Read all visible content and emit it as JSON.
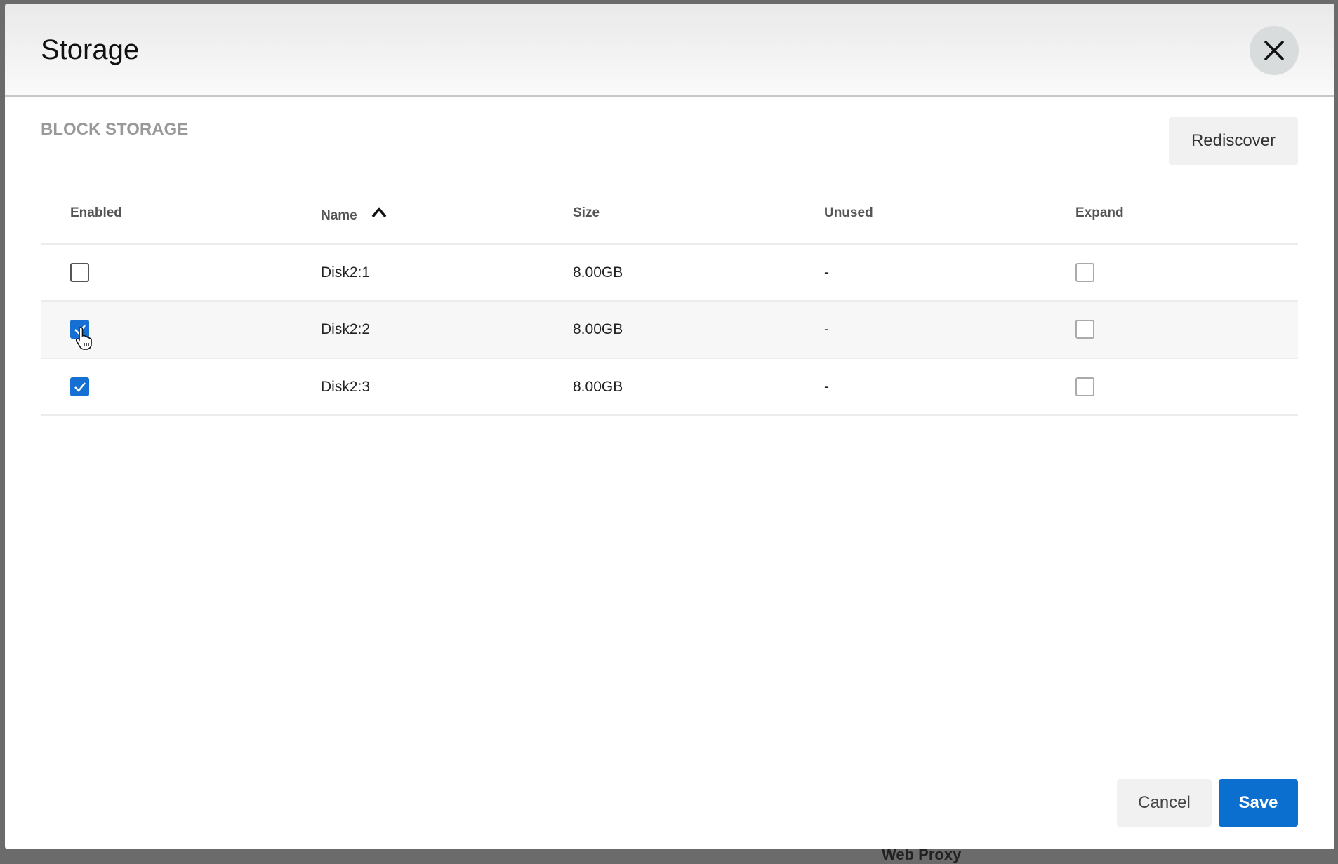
{
  "background": {
    "partial_text": "Web Proxy"
  },
  "dialog": {
    "title": "Storage",
    "close_icon": "close-icon",
    "section_title": "BLOCK STORAGE",
    "rediscover_label": "Rediscover",
    "table": {
      "columns": [
        "Enabled",
        "Name",
        "Size",
        "Unused",
        "Expand"
      ],
      "sort": {
        "column": "Name",
        "direction": "ascending",
        "icon": "arrow-up-icon"
      },
      "rows": [
        {
          "enabled": false,
          "name": "Disk2:1",
          "size": "8.00GB",
          "unused": "-",
          "expand": false
        },
        {
          "enabled": true,
          "name": "Disk2:2",
          "size": "8.00GB",
          "unused": "-",
          "expand": false
        },
        {
          "enabled": true,
          "name": "Disk2:3",
          "size": "8.00GB",
          "unused": "-",
          "expand": false
        }
      ]
    },
    "cancel_label": "Cancel",
    "save_label": "Save",
    "accent_color": "#0b6fd0"
  }
}
